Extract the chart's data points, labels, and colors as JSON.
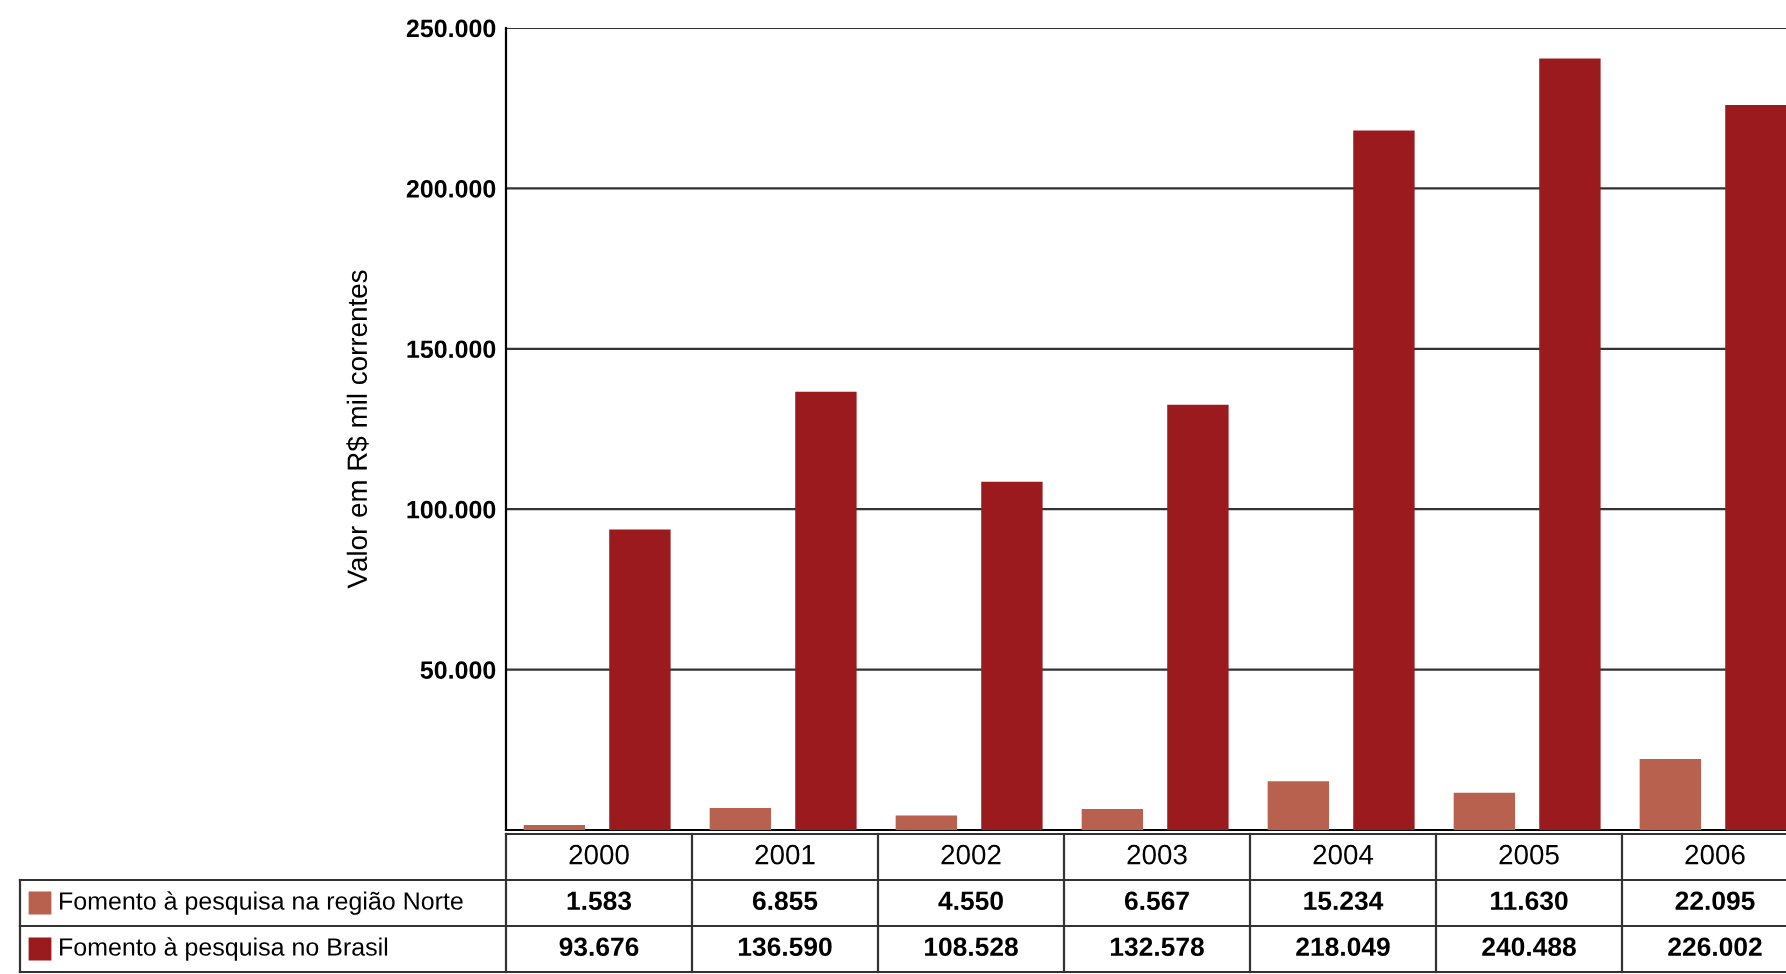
{
  "chart_data": {
    "type": "bar",
    "ylabel": "Valor em R$ mil correntes",
    "categories": [
      "2000",
      "2001",
      "2002",
      "2003",
      "2004",
      "2005",
      "2006"
    ],
    "series": [
      {
        "name": "Fomento à pesquisa na região Norte",
        "color": "#b8614f",
        "values": [
          1583,
          6855,
          4550,
          6567,
          15234,
          11630,
          22095
        ],
        "value_labels": [
          "1.583",
          "6.855",
          "4.550",
          "6.567",
          "15.234",
          "11.630",
          "22.095"
        ]
      },
      {
        "name": "Fomento à pesquisa no Brasil",
        "color": "#9b1a1e",
        "values": [
          93676,
          136590,
          108528,
          132578,
          218049,
          240488,
          226002
        ],
        "value_labels": [
          "93.676",
          "136.590",
          "108.528",
          "132.578",
          "218.049",
          "240.488",
          "226.002"
        ]
      }
    ],
    "ylim": [
      0,
      250000
    ],
    "yticks": [
      {
        "value": 0,
        "label": null
      },
      {
        "value": 50000,
        "label": "50.000"
      },
      {
        "value": 100000,
        "label": "100.000"
      },
      {
        "value": 150000,
        "label": "150.000"
      },
      {
        "value": 200000,
        "label": "200.000"
      },
      {
        "value": 250000,
        "label": "250.000"
      }
    ],
    "grid": "y",
    "legend": "bottom left"
  }
}
